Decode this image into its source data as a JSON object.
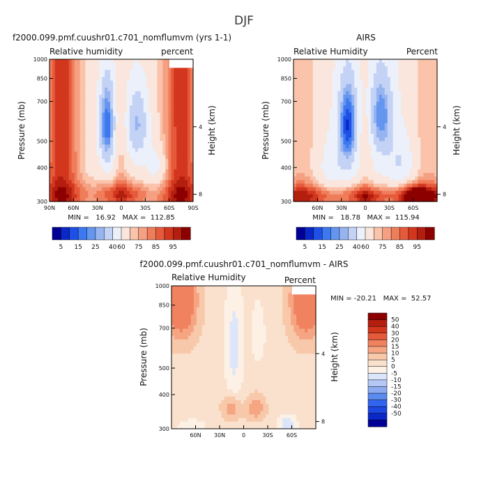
{
  "page_title": "DJF",
  "colors": {
    "rh_palette": [
      "#000096",
      "#0a28c8",
      "#1e50e6",
      "#3c78f0",
      "#6496f0",
      "#96b4f0",
      "#c3d2f5",
      "#ebf0fa",
      "#fae6dc",
      "#fac3aa",
      "#f5a082",
      "#f07d5a",
      "#e65a3c",
      "#d2371e",
      "#b41e0f",
      "#8c0000"
    ],
    "diff_palette": [
      "#000096",
      "#0a28c8",
      "#1e46e1",
      "#3264f0",
      "#5a8cf0",
      "#8caaf0",
      "#b4c8f5",
      "#dce6fa",
      "#fdf1e6",
      "#fae1cd",
      "#f8c8aa",
      "#f5a582",
      "#f08260",
      "#e65a3c",
      "#d2371e",
      "#b41e0f",
      "#8c0000"
    ],
    "missing": "#ffffff"
  },
  "chart_data": [
    {
      "type": "heatmap",
      "title": "f2000.099.pmf.cuushr01.c701_nomflumvm (yrs 1-1)",
      "left_label": "Relative humidity",
      "right_label": "percent",
      "ylabel": "Pressure (mb)",
      "ylabel_right": "Height (km)",
      "x_ticks": [
        "90N",
        "60N",
        "30N",
        "0",
        "30S",
        "60S",
        "90S"
      ],
      "x_tick_values": [
        90,
        60,
        30,
        0,
        -30,
        -60,
        -90
      ],
      "y_ticks": [
        "300",
        "400",
        "500",
        "700",
        "850",
        "1000"
      ],
      "y_tick_values": [
        300,
        400,
        500,
        700,
        850,
        1000
      ],
      "height_ticks": [
        "8",
        "4"
      ],
      "height_tick_values": [
        8,
        4
      ],
      "xlim": [
        90,
        -90
      ],
      "ylim": [
        1000,
        300
      ],
      "y_scale": "log",
      "stats_text": "MIN =   16.92   MAX =  112.85",
      "colorbar_labels": [
        "5",
        "15",
        "25",
        "40",
        "60",
        "75",
        "85",
        "95"
      ],
      "colorbar_orientation": "horizontal",
      "missing_region": {
        "lat": [
          -60,
          -90
        ],
        "pressure": [
          930,
          1000
        ]
      },
      "shape": "modelRH"
    },
    {
      "type": "heatmap",
      "title": "AIRS",
      "left_label": "Relative Humidity",
      "right_label": "Percent",
      "ylabel": "Pressure (mb)",
      "ylabel_right": "Height (km)",
      "x_ticks": [
        "60N",
        "30N",
        "0",
        "30S",
        "60S"
      ],
      "x_tick_values": [
        60,
        30,
        0,
        -30,
        -60
      ],
      "y_ticks": [
        "300",
        "400",
        "500",
        "700",
        "850",
        "1000"
      ],
      "y_tick_values": [
        300,
        400,
        500,
        700,
        850,
        1000
      ],
      "height_ticks": [
        "8",
        "4"
      ],
      "height_tick_values": [
        8,
        4
      ],
      "xlim": [
        90,
        -90
      ],
      "ylim": [
        1000,
        300
      ],
      "y_scale": "log",
      "stats_text": "MIN =   18.78   MAX =  115.94",
      "colorbar_labels": [
        "5",
        "15",
        "25",
        "40",
        "60",
        "75",
        "85",
        "95"
      ],
      "colorbar_orientation": "horizontal",
      "shape": "airsRH"
    },
    {
      "type": "heatmap",
      "title": "f2000.099.pmf.cuushr01.c701_nomflumvm - AIRS",
      "left_label": "Relative Humidity",
      "right_label": "Percent",
      "ylabel": "Pressure (mb)",
      "ylabel_right": "Height (km)",
      "x_ticks": [
        "60N",
        "30N",
        "0",
        "30S",
        "60S"
      ],
      "x_tick_values": [
        60,
        30,
        0,
        -30,
        -60
      ],
      "y_ticks": [
        "300",
        "400",
        "500",
        "700",
        "850",
        "1000"
      ],
      "y_tick_values": [
        300,
        400,
        500,
        700,
        850,
        1000
      ],
      "height_ticks": [
        "8",
        "4"
      ],
      "height_tick_values": [
        8,
        4
      ],
      "xlim": [
        90,
        -90
      ],
      "ylim": [
        1000,
        300
      ],
      "y_scale": "log",
      "stats_text": "MIN = -20.21   MAX =  52.57",
      "colorbar_labels": [
        "50",
        "40",
        "30",
        "20",
        "15",
        "10",
        "5",
        "0",
        "-5",
        "-10",
        "-15",
        "-20",
        "-30",
        "-40",
        "-50"
      ],
      "colorbar_orientation": "vertical",
      "missing_region": {
        "lat": [
          -60,
          -90
        ],
        "pressure": [
          930,
          1000
        ]
      },
      "shape": "diffRH"
    }
  ]
}
